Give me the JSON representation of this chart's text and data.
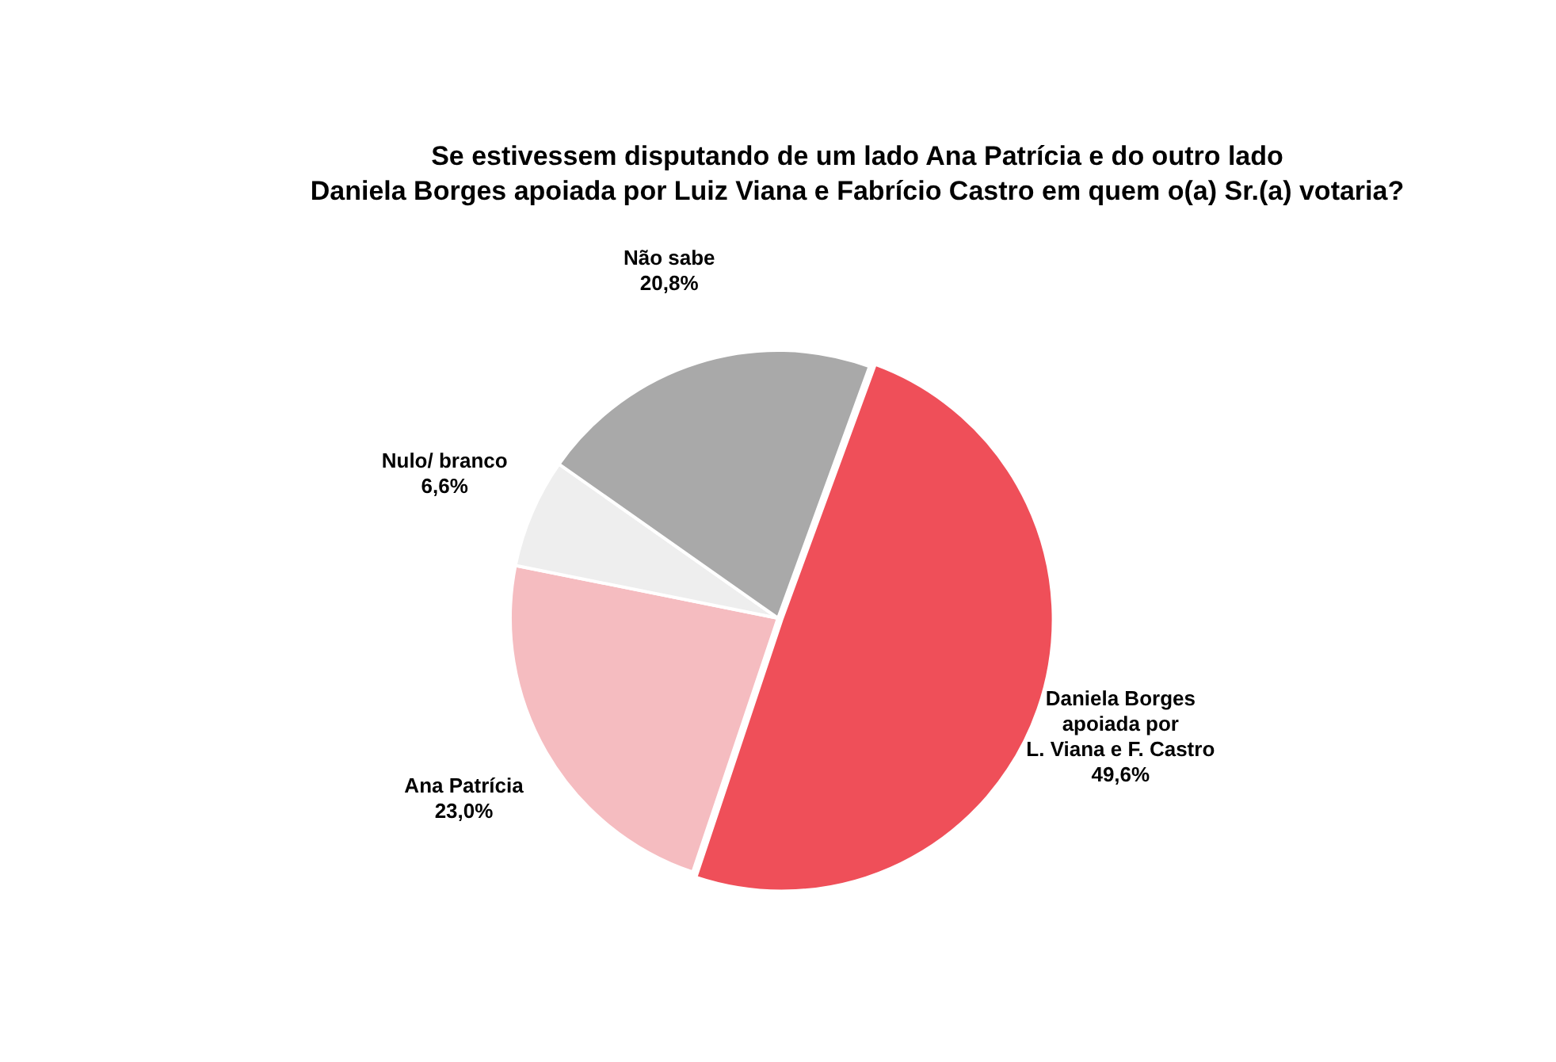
{
  "chart_data": {
    "type": "pie",
    "title": "Se estivessem disputando de um lado Ana Patrícia e do outro lado\nDaniela Borges apoiada por Luiz Viana e Fabrício Castro em quem o(a) Sr.(a) votaria?",
    "categories": [
      "Daniela Borges\napoiada por\nL. Viana e F. Castro",
      "Ana Patrícia",
      "Nulo/ branco",
      "Não sabe"
    ],
    "values": [
      49.6,
      23.0,
      6.6,
      20.8
    ],
    "value_labels": [
      "49,6%",
      "23,0%",
      "6,6%",
      "20,8%"
    ],
    "colors": [
      "#ef4f59",
      "#f5bcc0",
      "#eeeeee",
      "#a9a9a9"
    ],
    "legend": false
  }
}
